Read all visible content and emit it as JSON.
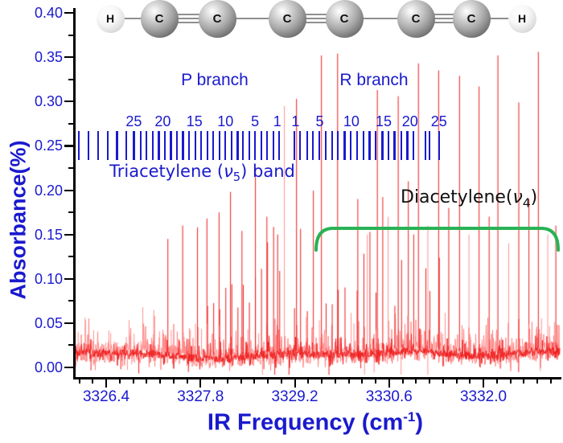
{
  "colors": {
    "accent_blue": "#1a1ace",
    "spectrum_red": "#ee1c1c",
    "spectrum_pale_red": "rgba(255,125,125,0.85)",
    "bracket_green": "#29b254",
    "axis_black": "#000000",
    "bond_gray": "#8f8f8f"
  },
  "molecule": {
    "name": "triacetylene",
    "atoms": [
      "H",
      "C",
      "C",
      "C",
      "C",
      "C",
      "C",
      "H"
    ],
    "bonds": [
      "single",
      "triple",
      "single",
      "triple",
      "single",
      "triple",
      "single"
    ]
  },
  "labels": {
    "p_branch": "P branch",
    "r_branch": "R branch",
    "tria_pre": "Triacetylene (",
    "tria_nu": "ν",
    "tria_sub": "5",
    "tria_post": ") band",
    "dia_pre": "Diacetylene(",
    "dia_nu": "ν",
    "dia_sub": "4",
    "dia_post": ")",
    "ylabel": "Absorbance(%)",
    "xlabel_pre": "IR Frequency (cm",
    "xlabel_sup": "-1",
    "xlabel_post": ")"
  },
  "chart_data": {
    "type": "line",
    "title": "",
    "xlabel": "IR Frequency (cm-1)",
    "ylabel": "Absorbance(%)",
    "xlim": [
      3325.92,
      3333.15
    ],
    "ylim": [
      -0.012,
      0.405
    ],
    "x_major_ticks": [
      3326.4,
      3327.8,
      3329.2,
      3330.6,
      3332.0
    ],
    "x_major_tick_labels": [
      "3326.4",
      "3327.8",
      "3329.2",
      "3330.6",
      "3332.0"
    ],
    "x_minor_step": 0.2,
    "y_major_ticks": [
      0.0,
      0.05,
      0.1,
      0.15,
      0.2,
      0.25,
      0.3,
      0.35,
      0.4
    ],
    "y_major_tick_labels": [
      "0.00",
      "0.05",
      "0.10",
      "0.15",
      "0.20",
      "0.25",
      "0.30",
      "0.35",
      "0.40"
    ],
    "y_minor_step": 0.025,
    "grid": false,
    "legend": false,
    "baseline_absorbance": 0.018,
    "noise_amplitude": 0.006,
    "p_branch_J_labels": [
      25,
      20,
      15,
      10,
      5,
      1
    ],
    "p_branch_J_label_freqs": [
      3326.81,
      3327.24,
      3327.71,
      3328.17,
      3328.61,
      3328.94
    ],
    "r_branch_J_labels": [
      1,
      5,
      10,
      15,
      20,
      25
    ],
    "r_branch_J_label_freqs": [
      3329.21,
      3329.57,
      3330.04,
      3330.52,
      3330.91,
      3331.34
    ],
    "p_comb_freqs": [
      3325.99,
      3326.14,
      3326.28,
      3326.42,
      3326.56,
      3326.7,
      3326.81,
      3326.91,
      3327.0,
      3327.09,
      3327.18,
      3327.27,
      3327.36,
      3327.45,
      3327.54,
      3327.63,
      3327.72,
      3327.81,
      3327.9,
      3327.99,
      3328.08,
      3328.17,
      3328.26,
      3328.35,
      3328.43,
      3328.52,
      3328.61,
      3328.7,
      3328.79,
      3328.88,
      3328.97
    ],
    "r_comb_freqs": [
      3329.19,
      3329.28,
      3329.38,
      3329.47,
      3329.56,
      3329.66,
      3329.75,
      3329.84,
      3329.94,
      3330.03,
      3330.12,
      3330.22,
      3330.31,
      3330.4,
      3330.5,
      3330.59,
      3330.68,
      3330.78,
      3330.87,
      3330.96,
      3331.14,
      3331.2,
      3331.34
    ],
    "diacetylene_bracket_range": [
      3329.52,
      3333.11
    ],
    "main_peaks": [
      [
        3327.31,
        0.145,
        0
      ],
      [
        3327.53,
        0.16,
        0
      ],
      [
        3327.75,
        0.158,
        0
      ],
      [
        3327.89,
        0.168,
        0
      ],
      [
        3328.07,
        0.175,
        0
      ],
      [
        3328.24,
        0.198,
        0
      ],
      [
        3328.41,
        0.154,
        0
      ],
      [
        3328.61,
        0.226,
        0
      ],
      [
        3328.78,
        0.17,
        0
      ],
      [
        3328.94,
        0.15,
        0
      ],
      [
        3329.04,
        0.295,
        1
      ],
      [
        3329.22,
        0.303,
        0
      ],
      [
        3329.59,
        0.352,
        0
      ],
      [
        3329.83,
        0.354,
        0
      ],
      [
        3330.13,
        0.19,
        0
      ],
      [
        3330.27,
        0.15,
        1
      ],
      [
        3330.42,
        0.313,
        0
      ],
      [
        3330.58,
        0.17,
        1
      ],
      [
        3330.73,
        0.306,
        0
      ],
      [
        3330.88,
        0.21,
        0
      ],
      [
        3331.03,
        0.343,
        0
      ],
      [
        3331.17,
        0.16,
        1
      ],
      [
        3331.33,
        0.335,
        0
      ],
      [
        3331.48,
        0.18,
        0
      ],
      [
        3331.64,
        0.329,
        0
      ],
      [
        3331.78,
        0.15,
        1
      ],
      [
        3331.93,
        0.317,
        0
      ],
      [
        3332.08,
        0.17,
        0
      ],
      [
        3332.21,
        0.352,
        0
      ],
      [
        3332.37,
        0.14,
        1
      ],
      [
        3332.52,
        0.299,
        0
      ],
      [
        3332.67,
        0.19,
        0
      ],
      [
        3332.81,
        0.356,
        0
      ],
      [
        3332.95,
        0.15,
        1
      ],
      [
        3333.07,
        0.16,
        0
      ]
    ],
    "comb_peak_height_range": [
      0.01,
      0.2
    ]
  }
}
